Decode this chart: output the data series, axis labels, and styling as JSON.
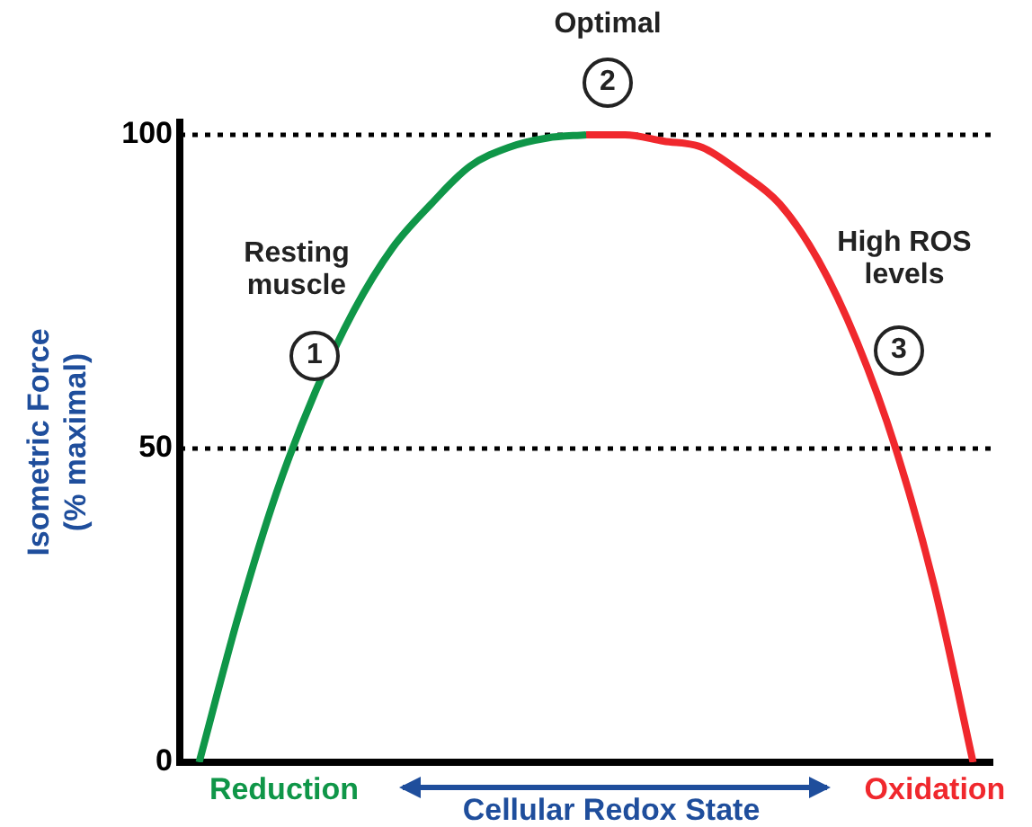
{
  "chart_data": {
    "type": "line",
    "ylabel": "Isometric Force\n(% maximal)",
    "xlabel": "Cellular Redox State",
    "categories": [
      null,
      null,
      null,
      null,
      null,
      null,
      null,
      null,
      null,
      null,
      null,
      null,
      null,
      null,
      null,
      null,
      null,
      null,
      null,
      null,
      null
    ],
    "series": [
      {
        "color": "#0f9648",
        "values": [
          0,
          23,
          43,
          59,
          72,
          82,
          89,
          95,
          98,
          99.5,
          100,
          null,
          null,
          null,
          null,
          null,
          null,
          null,
          null,
          null,
          null
        ]
      },
      {
        "color": "#f0282d",
        "values": [
          null,
          null,
          null,
          null,
          null,
          null,
          null,
          null,
          null,
          null,
          100,
          100,
          99,
          98,
          94,
          89,
          80,
          67,
          50,
          28,
          0
        ]
      }
    ],
    "ylim": [
      0,
      102
    ],
    "yticks": [
      0,
      50,
      100
    ],
    "grid": false,
    "legend": false,
    "marker": "none",
    "line_style": "solid",
    "tick_labels": "y",
    "ref_lines": [
      {
        "axis": "y",
        "value": 100,
        "line_style": "dotted",
        "color": "#000000"
      },
      {
        "axis": "y",
        "value": 50,
        "line_style": "dotted",
        "color": "#000000"
      }
    ],
    "annotations": [
      "Optimal",
      "2",
      "Resting\nmuscle",
      "1",
      "High ROS\nlevels",
      "3",
      "Reduction",
      "Oxidation"
    ]
  }
}
